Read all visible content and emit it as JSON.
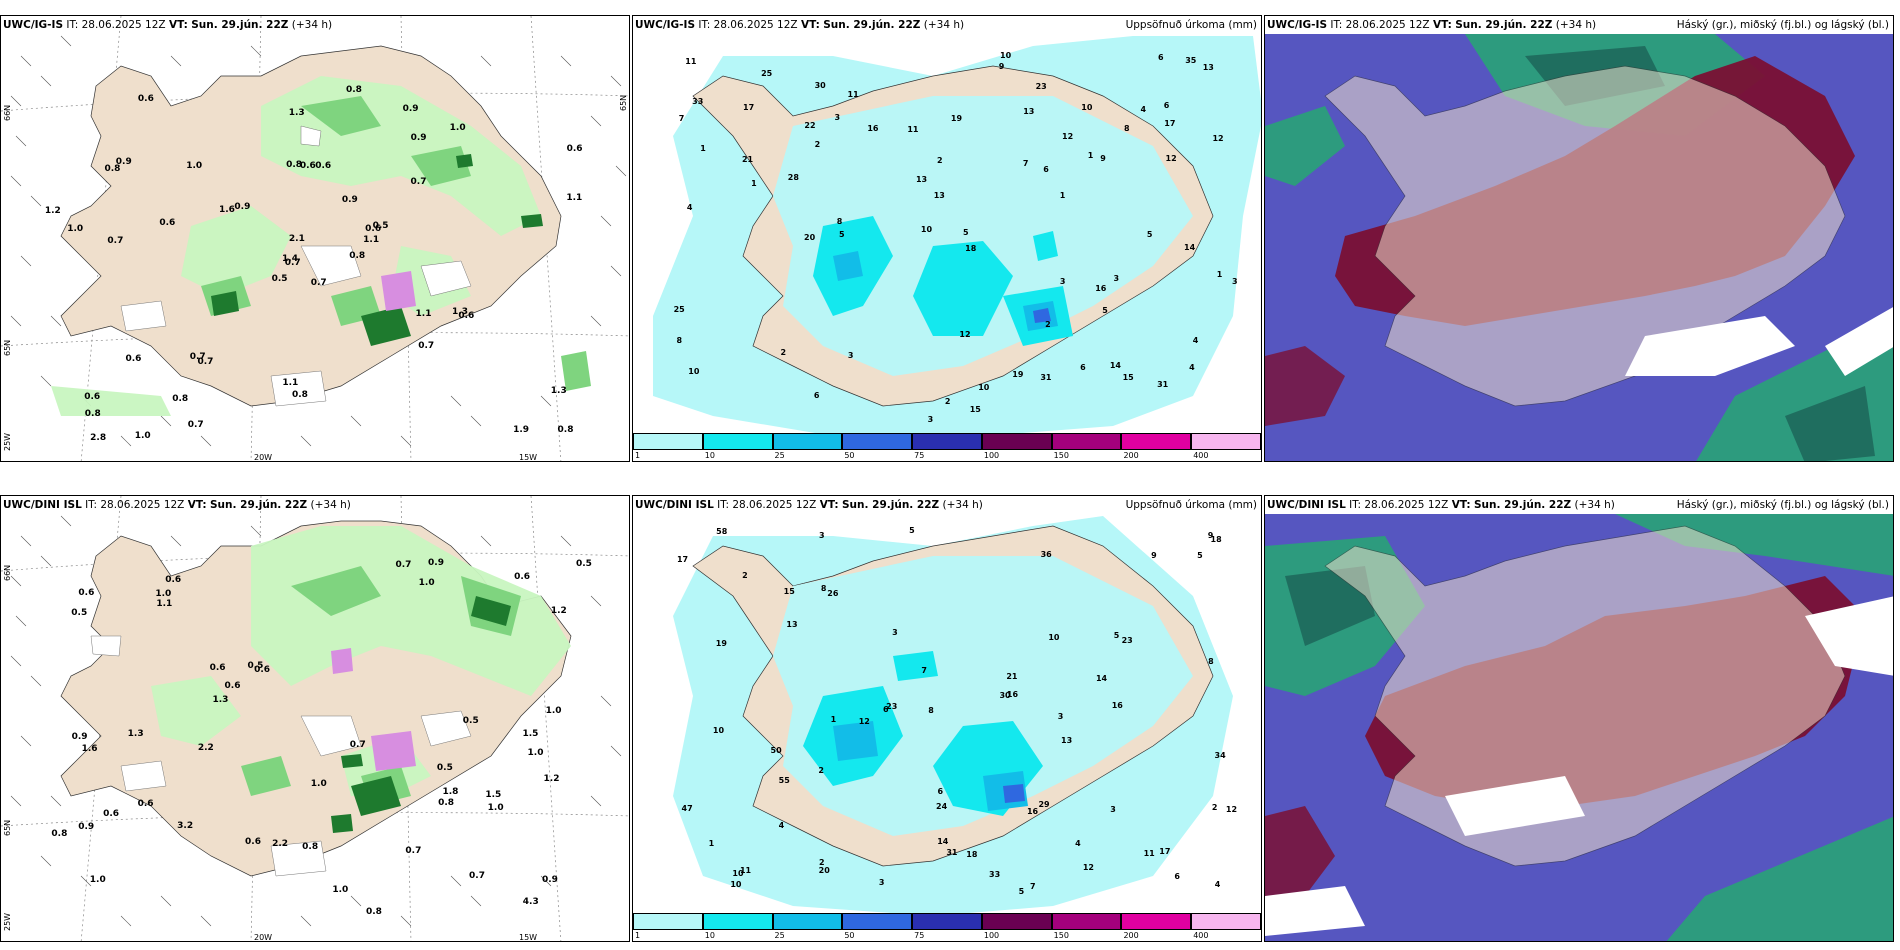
{
  "panels": {
    "tl": {
      "model": "UWC/IG-IS",
      "it": "IT: 28.06.2025 12Z",
      "vt_label": "VT:",
      "vt": "Sun. 29.jún. 22Z",
      "lead": "(+34 h)",
      "lat_labels": [
        "66N",
        "65N",
        "25W"
      ],
      "lat_labels_right": [
        "65N"
      ],
      "lon_labels": [
        "20W",
        "15W"
      ],
      "values": [
        "0.7",
        "0.8",
        "0.7",
        "0.6",
        "0.6",
        "0.7",
        "0.9",
        "0.6",
        "0.9",
        "0.8",
        "0.6",
        "0.8",
        "0.7",
        "0.6",
        "0.5",
        "0.7",
        "1.0",
        "0.8",
        "0.9",
        "0.6",
        "0.9",
        "0.8",
        "0.8",
        "0.6",
        "0.5",
        "0.6",
        "0.9",
        "1.3",
        "1.0",
        "1.1",
        "1.1",
        "1.4",
        "1.1",
        "2.1",
        "1.0",
        "1.0",
        "0.7",
        "1.9",
        "1.3",
        "1.3",
        "0.8",
        "1.6",
        "0.6",
        "0.7",
        "0.7",
        "1.2",
        "1.1",
        "2.8",
        "0.8"
      ]
    },
    "tm": {
      "model": "UWC/IG-IS",
      "it": "IT: 28.06.2025 12Z",
      "vt_label": "VT:",
      "vt": "Sun. 29.jún. 22Z",
      "lead": "(+34 h)",
      "right": "Uppsöfnuð úrkoma (mm)",
      "counts": [
        "1",
        "2",
        "1",
        "2",
        "4",
        "3",
        "3",
        "5",
        "6",
        "3",
        "1",
        "3",
        "1",
        "2",
        "4",
        "6",
        "8",
        "11",
        "31",
        "19",
        "15",
        "14",
        "13",
        "12",
        "10",
        "28",
        "17",
        "23",
        "25",
        "20",
        "25",
        "31",
        "35",
        "21",
        "33",
        "30",
        "16",
        "13",
        "9",
        "8",
        "9",
        "22",
        "13",
        "14",
        "10",
        "12",
        "7",
        "5",
        "4",
        "3",
        "2",
        "6",
        "10",
        "16",
        "19",
        "11",
        "10",
        "5",
        "6",
        "7",
        "8",
        "11",
        "12",
        "13",
        "15",
        "17",
        "18",
        "10",
        "12",
        "6",
        "5",
        "4",
        "3",
        "2",
        "1"
      ]
    },
    "tr": {
      "model": "UWC/IG-IS",
      "it": "IT: 28.06.2025 12Z",
      "vt_label": "VT:",
      "vt": "Sun. 29.jún. 22Z",
      "lead": "(+34 h)",
      "right": "Háský (gr.), miðský (fj.bl.) og lágský (bl.)"
    },
    "bl": {
      "model": "UWC/DINI ISL",
      "it": "IT: 28.06.2025 12Z",
      "vt_label": "VT:",
      "vt": "Sun. 29.jún. 22Z",
      "lead": "(+34 h)",
      "lat_labels": [
        "66N",
        "65N",
        "25W"
      ],
      "lat_labels_right": [
        "66N",
        "65N"
      ],
      "lon_labels": [
        "20W",
        "15W"
      ],
      "values": [
        "0.5",
        "1.0",
        "1.0",
        "0.6",
        "0.6",
        "0.7",
        "0.9",
        "1.0",
        "0.6",
        "0.8",
        "0.5",
        "0.9",
        "0.6",
        "0.9",
        "0.6",
        "1.0",
        "1.0",
        "0.7",
        "0.5",
        "0.6",
        "0.5",
        "0.6",
        "1.3",
        "1.2",
        "0.7",
        "1.0",
        "1.8",
        "1.6",
        "1.1",
        "0.5",
        "1.0",
        "0.7",
        "0.6",
        "2.2",
        "1.5",
        "1.0",
        "0.8",
        "1.3",
        "0.8",
        "0.6",
        "1.2",
        "0.9",
        "4.3",
        "2.2",
        "1.5",
        "3.2",
        "0.8"
      ]
    },
    "bm": {
      "model": "UWC/DINI ISL",
      "it": "IT: 28.06.2025 12Z",
      "vt_label": "VT:",
      "vt": "Sun. 29.jún. 22Z",
      "lead": "(+34 h)",
      "right": "Uppsöfnuð úrkoma (mm)",
      "counts": [
        "3",
        "5",
        "2",
        "4",
        "3",
        "2",
        "1",
        "6",
        "5",
        "3",
        "9",
        "31",
        "23",
        "24",
        "36",
        "30",
        "19",
        "20",
        "12",
        "17",
        "16",
        "18",
        "21",
        "10",
        "23",
        "50",
        "47",
        "55",
        "58",
        "13",
        "8",
        "7",
        "6",
        "5",
        "4",
        "3",
        "2",
        "1",
        "10",
        "17",
        "16",
        "14",
        "12",
        "11",
        "26",
        "29",
        "34",
        "33",
        "15",
        "14",
        "9",
        "8",
        "4",
        "3",
        "2",
        "5",
        "6",
        "7",
        "8",
        "10",
        "11",
        "12",
        "13",
        "16",
        "18",
        "10"
      ]
    },
    "br": {
      "model": "UWC/DINI ISL",
      "it": "IT: 28.06.2025 12Z",
      "vt_label": "VT:",
      "vt": "Sun. 29.jún. 22Z",
      "lead": "(+34 h)",
      "right": "Háský (gr.), miðský (fj.bl.) og lágský (bl.)"
    }
  },
  "legend": {
    "ticks": [
      "1",
      "10",
      "25",
      "50",
      "75",
      "100",
      "150",
      "200",
      "400"
    ],
    "colors": [
      "#b6f7f8",
      "#14e8ee",
      "#12bde8",
      "#2f68e0",
      "#2a2fb0",
      "#6a0052",
      "#a4007c",
      "#e000a0",
      "#f7b6ef"
    ]
  },
  "colors": {
    "land": "#efdfcc",
    "sea_white": "#ffffff",
    "precip_light": "#c8f5c0",
    "precip_mid": "#7fd47f",
    "precip_dark": "#1e7a2e",
    "snow": "#d78ee0",
    "cloud_high": "#2d9b7e",
    "cloud_mid": "#7a1034",
    "cloud_low": "#5656c0"
  }
}
